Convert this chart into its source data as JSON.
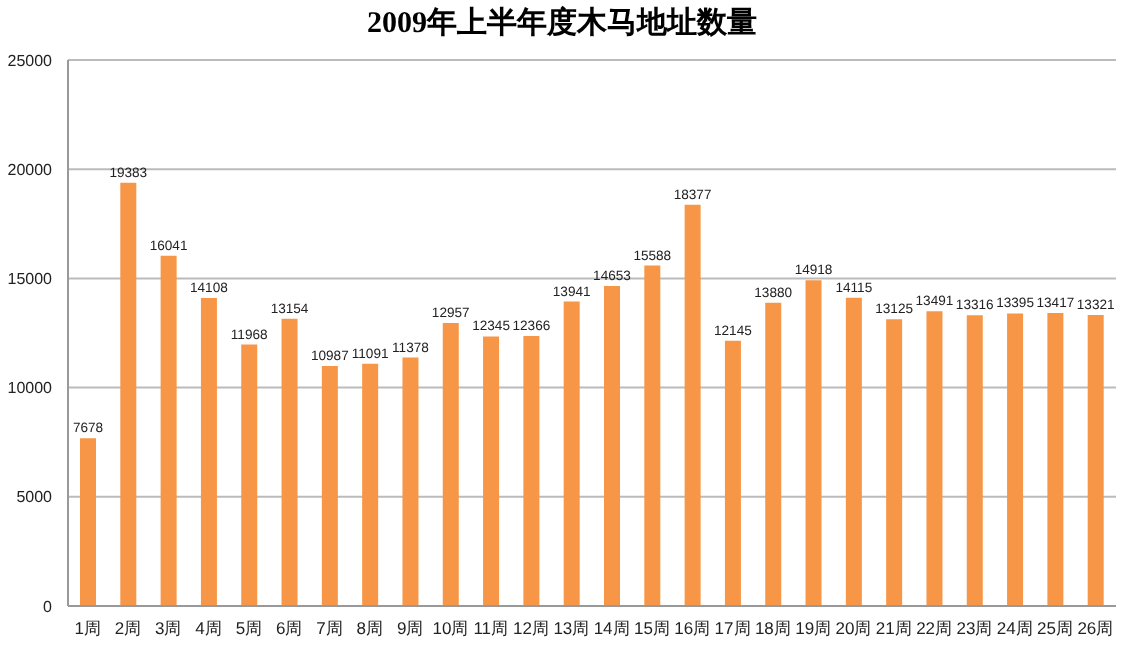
{
  "chart_data": {
    "type": "bar",
    "title": "2009年上半年度木马地址数量",
    "categories": [
      "1周",
      "2周",
      "3周",
      "4周",
      "5周",
      "6周",
      "7周",
      "8周",
      "9周",
      "10周",
      "11周",
      "12周",
      "13周",
      "14周",
      "15周",
      "16周",
      "17周",
      "18周",
      "19周",
      "20周",
      "21周",
      "22周",
      "23周",
      "24周",
      "25周",
      "26周"
    ],
    "values": [
      7678,
      19383,
      16041,
      14108,
      11968,
      13154,
      10987,
      11091,
      11378,
      12957,
      12345,
      12366,
      13941,
      14653,
      15588,
      18377,
      12145,
      13880,
      14918,
      14115,
      13125,
      13491,
      13316,
      13395,
      13417,
      13321
    ],
    "color": "#f79646",
    "ylim": [
      0,
      25000
    ],
    "yticks": [
      0,
      5000,
      10000,
      15000,
      20000,
      25000
    ],
    "grid": "y",
    "data_labels": true
  }
}
